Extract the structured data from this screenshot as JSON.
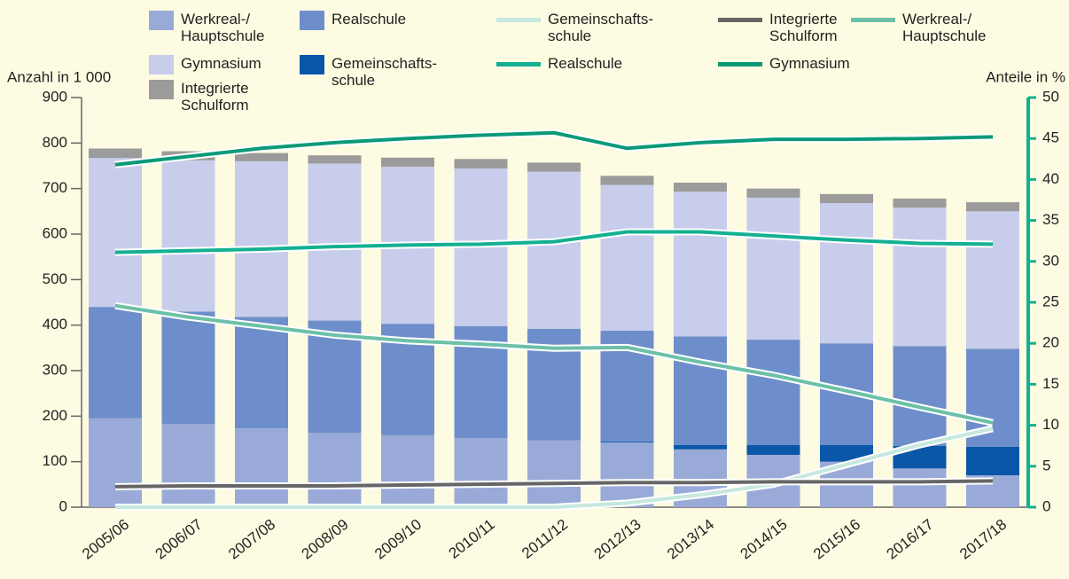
{
  "chart_data": {
    "type": "bar",
    "stacked": true,
    "y_label": "Anzahl in 1 000",
    "y2_label": "Anteile in %",
    "categories": [
      "2005/06",
      "2006/07",
      "2007/08",
      "2008/09",
      "2009/10",
      "2010/11",
      "2011/12",
      "2012/13",
      "2013/14",
      "2014/15",
      "2015/16",
      "2016/17",
      "2017/18"
    ],
    "series": [
      {
        "name": "Werkreal-/\nHauptschule",
        "color": "#9aaad8",
        "values": [
          195,
          183,
          173,
          163,
          158,
          152,
          147,
          142,
          127,
          115,
          100,
          85,
          70
        ]
      },
      {
        "name": "Realschule",
        "color": "#6e8ecb",
        "values": [
          245,
          247,
          245,
          247,
          245,
          246,
          245,
          244,
          238,
          231,
          223,
          219,
          215
        ]
      },
      {
        "name": "Gymnasium",
        "color": "#c8cdec",
        "values": [
          327,
          332,
          342,
          345,
          345,
          346,
          345,
          320,
          318,
          312,
          308,
          304,
          302
        ]
      },
      {
        "name": "Gemeinschafts-\nschule",
        "color": "#0a56a8",
        "values": [
          0,
          0,
          0,
          0,
          0,
          0,
          0,
          2,
          10,
          22,
          37,
          50,
          63
        ]
      },
      {
        "name": "Integrierte\nSchulform",
        "color": "#9b9b9b",
        "values": [
          21,
          20,
          18,
          18,
          20,
          21,
          20,
          20,
          20,
          20,
          20,
          20,
          20
        ]
      }
    ],
    "line_series": [
      {
        "name": "Gemeinschafts-\nschule",
        "color": "#c6e8df",
        "axis": "y2",
        "values": [
          0,
          0,
          0,
          0,
          0,
          0,
          0,
          0.5,
          1.5,
          2.8,
          5.2,
          7.6,
          9.6
        ]
      },
      {
        "name": "Integrierte\nSchulform",
        "color": "#666666",
        "axis": "y2",
        "values": [
          2.5,
          2.6,
          2.6,
          2.6,
          2.7,
          2.8,
          2.9,
          3,
          3,
          3.1,
          3.1,
          3.1,
          3.2
        ]
      },
      {
        "name": "Werkreal-/\nHauptschule",
        "color": "#6cc0a8",
        "axis": "y2",
        "values": [
          24.6,
          23.2,
          22.1,
          21,
          20.3,
          19.9,
          19.4,
          19.5,
          17.7,
          16.1,
          14.2,
          12.2,
          10.3
        ]
      },
      {
        "name": "Realschule",
        "color": "#14b092",
        "axis": "y2",
        "values": [
          31.1,
          31.3,
          31.5,
          31.8,
          32,
          32.1,
          32.4,
          33.6,
          33.6,
          33.1,
          32.6,
          32.2,
          32.1
        ]
      },
      {
        "name": "Gymnasium",
        "color": "#0a9a78",
        "axis": "y2",
        "values": [
          41.8,
          42.8,
          43.8,
          44.5,
          45,
          45.4,
          45.7,
          43.8,
          44.5,
          44.9,
          44.9,
          45,
          45.2
        ]
      }
    ],
    "ylim": [
      0,
      900
    ],
    "yticks": [
      0,
      100,
      200,
      300,
      400,
      500,
      600,
      700,
      800,
      900
    ],
    "y2lim": [
      0,
      50
    ],
    "y2ticks": [
      0,
      5,
      10,
      15,
      20,
      25,
      30,
      35,
      40,
      45,
      50
    ],
    "y2_color": "#14b092"
  }
}
